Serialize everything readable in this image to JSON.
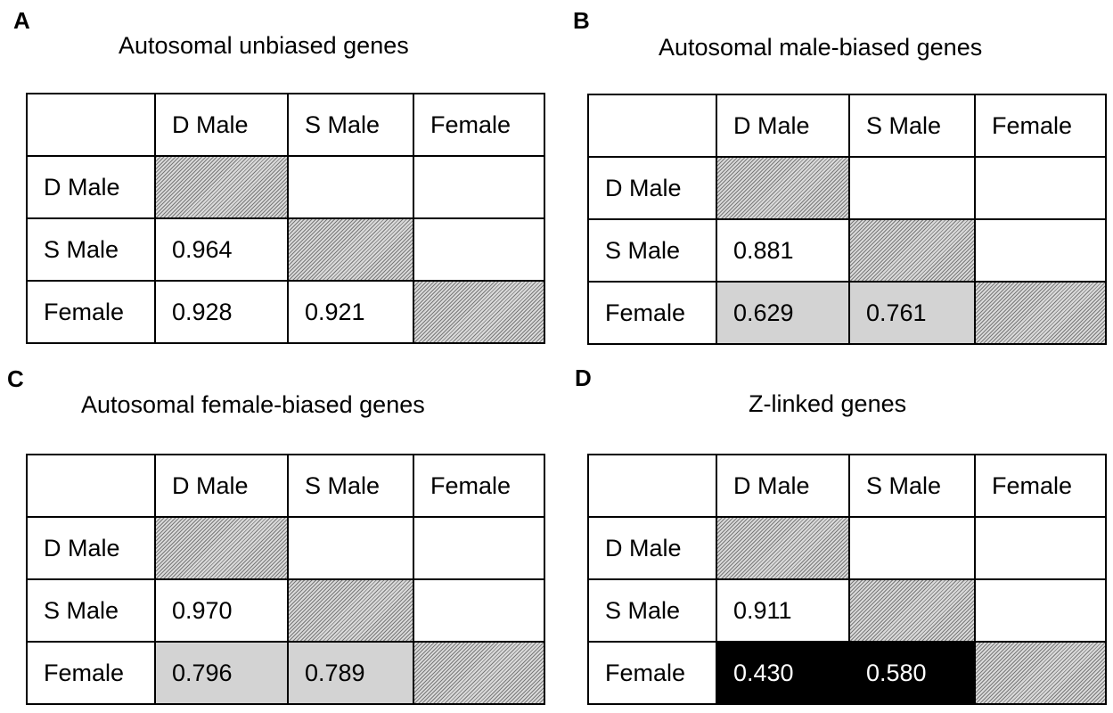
{
  "chart_data": [
    {
      "type": "table",
      "panel": "A",
      "title": "Autosomal unbiased genes",
      "columns": [
        "",
        "D Male",
        "S Male",
        "Female"
      ],
      "rows": [
        {
          "label": "D Male",
          "cells": [
            "",
            "",
            ""
          ],
          "shade": [
            "hatch",
            "none",
            "none"
          ]
        },
        {
          "label": "S Male",
          "cells": [
            "0.964",
            "",
            ""
          ],
          "shade": [
            "none",
            "hatch",
            "none"
          ]
        },
        {
          "label": "Female",
          "cells": [
            "0.928",
            "0.921",
            ""
          ],
          "shade": [
            "none",
            "none",
            "hatch"
          ]
        }
      ]
    },
    {
      "type": "table",
      "panel": "B",
      "title": "Autosomal male-biased genes",
      "columns": [
        "",
        "D Male",
        "S Male",
        "Female"
      ],
      "rows": [
        {
          "label": "D Male",
          "cells": [
            "",
            "",
            ""
          ],
          "shade": [
            "hatch",
            "none",
            "none"
          ]
        },
        {
          "label": "S Male",
          "cells": [
            "0.881",
            "",
            ""
          ],
          "shade": [
            "none",
            "hatch",
            "none"
          ]
        },
        {
          "label": "Female",
          "cells": [
            "0.629",
            "0.761",
            ""
          ],
          "shade": [
            "grey",
            "grey",
            "hatch"
          ]
        }
      ]
    },
    {
      "type": "table",
      "panel": "C",
      "title": "Autosomal female-biased genes",
      "columns": [
        "",
        "D Male",
        "S Male",
        "Female"
      ],
      "rows": [
        {
          "label": "D Male",
          "cells": [
            "",
            "",
            ""
          ],
          "shade": [
            "hatch",
            "none",
            "none"
          ]
        },
        {
          "label": "S Male",
          "cells": [
            "0.970",
            "",
            ""
          ],
          "shade": [
            "none",
            "hatch",
            "none"
          ]
        },
        {
          "label": "Female",
          "cells": [
            "0.796",
            "0.789",
            ""
          ],
          "shade": [
            "grey",
            "grey",
            "hatch"
          ]
        }
      ]
    },
    {
      "type": "table",
      "panel": "D",
      "title": "Z-linked genes",
      "columns": [
        "",
        "D Male",
        "S Male",
        "Female"
      ],
      "rows": [
        {
          "label": "D Male",
          "cells": [
            "",
            "",
            ""
          ],
          "shade": [
            "hatch",
            "none",
            "none"
          ]
        },
        {
          "label": "S Male",
          "cells": [
            "0.911",
            "",
            ""
          ],
          "shade": [
            "none",
            "hatch",
            "none"
          ]
        },
        {
          "label": "Female",
          "cells": [
            "0.430",
            "0.580",
            ""
          ],
          "shade": [
            "black",
            "black",
            "hatch"
          ]
        }
      ]
    }
  ],
  "colors": {
    "grid": "#000000",
    "grey_shade": "#d3d3d3",
    "black_shade": "#000000",
    "hatch_fill": "#d9d9d9",
    "hatch_line": "#7a7a7a"
  }
}
